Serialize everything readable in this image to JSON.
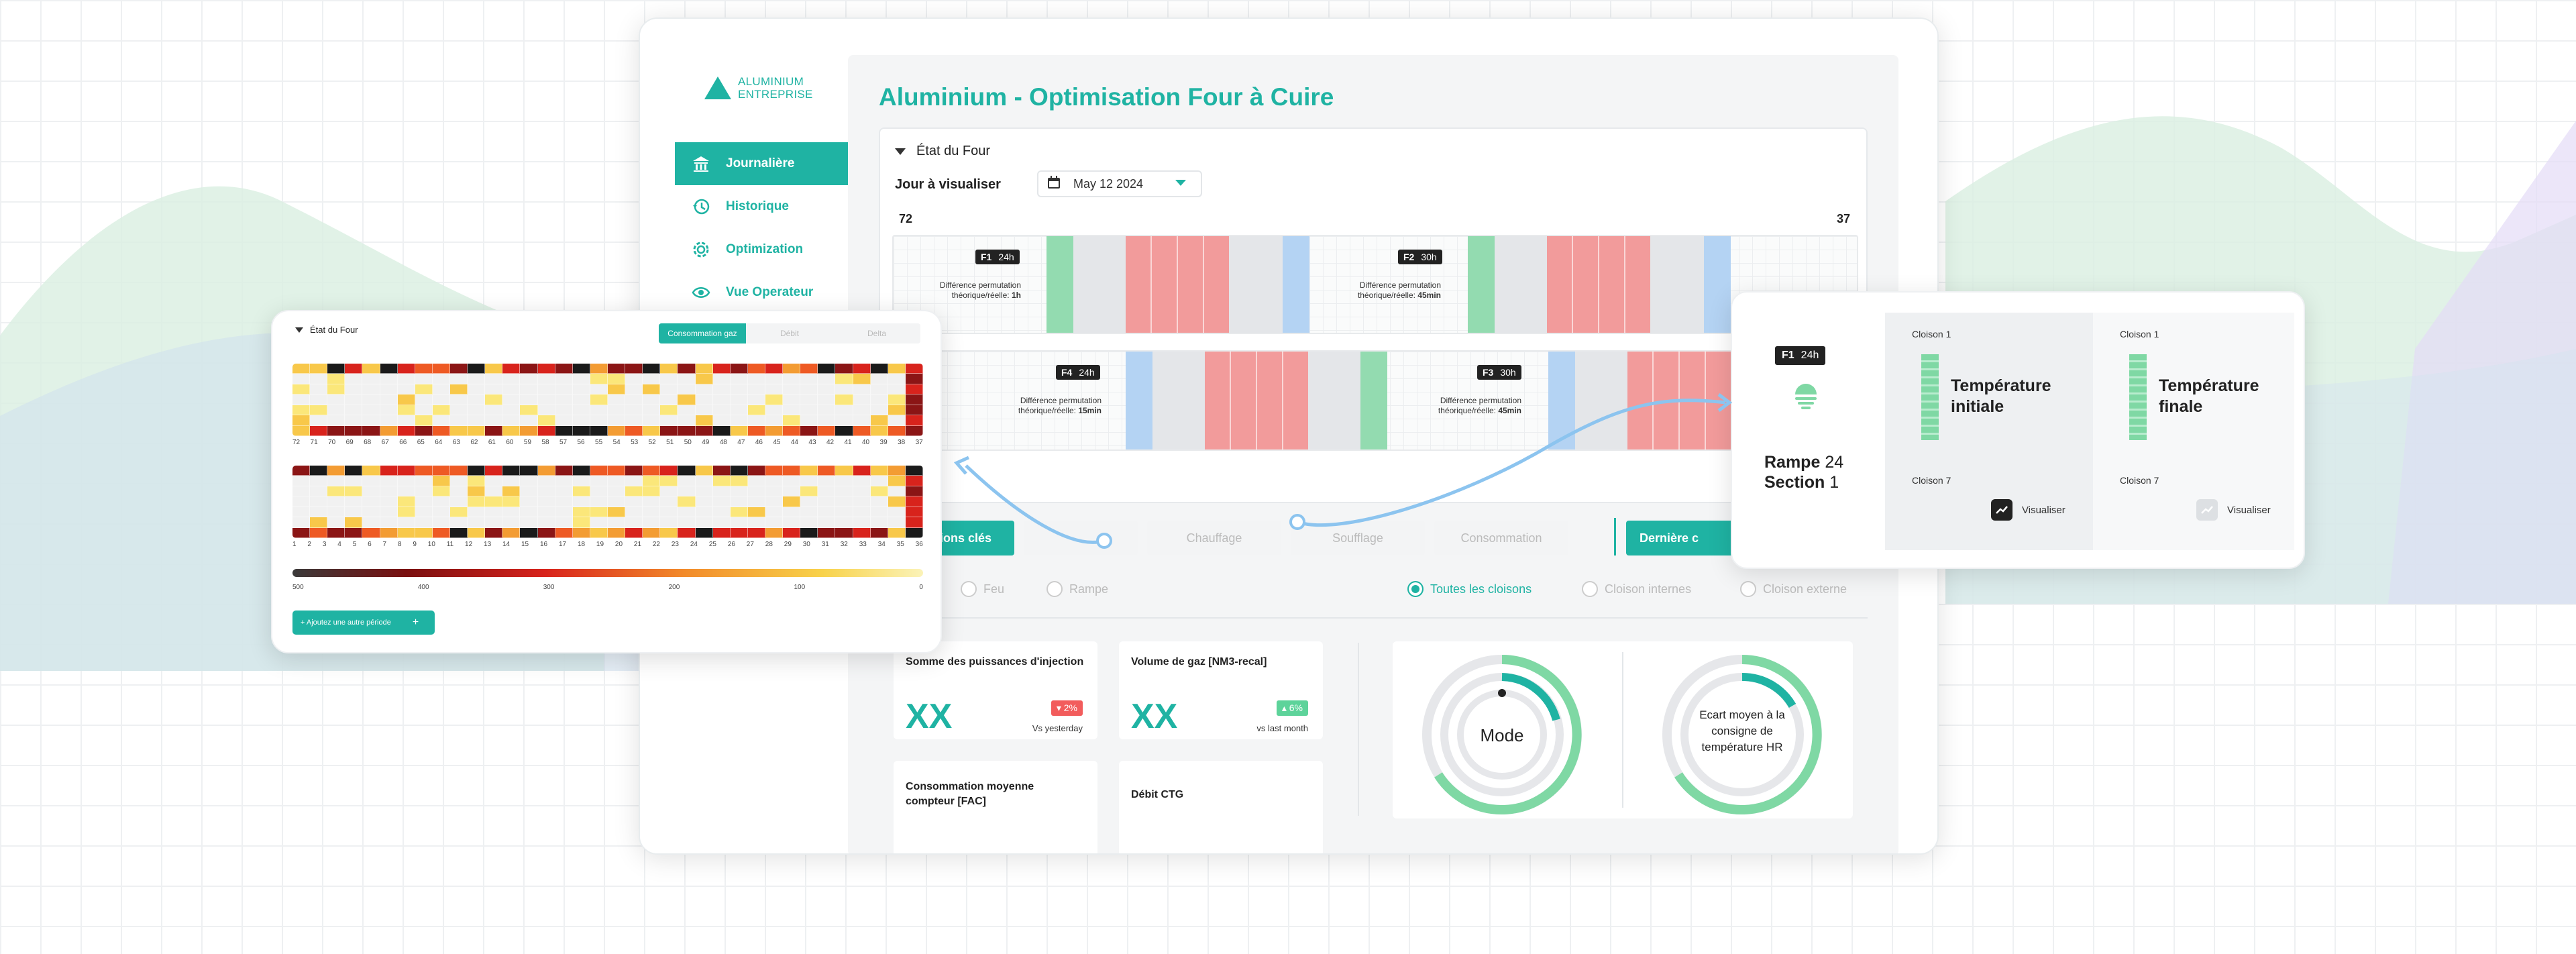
{
  "brand": {
    "line1": "ALUMINIUM",
    "line2": "ENTREPRISE"
  },
  "sidebar": {
    "items": [
      {
        "label": "Journalière",
        "icon": "bank-icon",
        "active": true
      },
      {
        "label": "Historique",
        "icon": "history-icon",
        "active": false
      },
      {
        "label": "Optimization",
        "icon": "gear-icon",
        "active": false
      },
      {
        "label": "Vue Operateur",
        "icon": "eye-icon",
        "active": false
      }
    ]
  },
  "page": {
    "title": "Aluminium - Optimisation Four à Cuire"
  },
  "four": {
    "section_title": "État du Four",
    "day_label": "Jour à visualiser",
    "date": "May 12 2024",
    "axis_left": "72",
    "axis_right": "37",
    "tags": [
      {
        "name": "F1",
        "hours": "24h"
      },
      {
        "name": "F2",
        "hours": "30h"
      },
      {
        "name": "F4",
        "hours": "24h"
      },
      {
        "name": "F3",
        "hours": "30h"
      }
    ],
    "notes": [
      {
        "line1": "Différence permutation",
        "line2": "théorique/réelle:",
        "value": "1h"
      },
      {
        "line1": "Différence permutation",
        "line2": "théorique/réelle:",
        "value": "45min"
      },
      {
        "line1": "Différence permutation",
        "line2": "théorique/réelle:",
        "value": "15min"
      },
      {
        "line1": "Différence permutation",
        "line2": "théorique/réelle:",
        "value": "45min"
      }
    ]
  },
  "tabs": [
    "ations clés",
    "",
    "Chauffage",
    "Soufflage",
    "Consommation"
  ],
  "last_btn": "Dernière c",
  "filters": {
    "left": [
      "Feu",
      "Rampe"
    ],
    "right": [
      "Toutes les cloisons",
      "Cloison internes",
      "Cloison externe"
    ]
  },
  "kpis": [
    {
      "label": "Somme des puissances d'injection",
      "value": "XX",
      "badge": "2%",
      "badge_color": "#f25c5c",
      "sub": "Vs yesterday"
    },
    {
      "label": "Volume de gaz [NM3-recal]",
      "value": "XX",
      "badge": "6%",
      "badge_color": "#5dd39a",
      "sub": "vs last month"
    },
    {
      "label": "Consommation moyenne compteur [FAC]",
      "value": "",
      "badge": "",
      "sub": ""
    },
    {
      "label": "Débit CTG",
      "value": "",
      "badge": "",
      "sub": ""
    }
  ],
  "gauges": [
    {
      "label": "Mode",
      "level": 0.12
    },
    {
      "label": "Ecart moyen à la consigne de température HR",
      "level": 0.1
    }
  ],
  "left_win": {
    "title": "État du Four",
    "seg": [
      "Consommation gaz",
      "Débit",
      "Delta"
    ],
    "top_axis": [
      "72",
      "71",
      "70",
      "69",
      "68",
      "67",
      "66",
      "65",
      "64",
      "63",
      "62",
      "61",
      "60",
      "59",
      "58",
      "57",
      "56",
      "55",
      "54",
      "53",
      "52",
      "51",
      "50",
      "49",
      "48",
      "47",
      "46",
      "45",
      "44",
      "43",
      "42",
      "41",
      "40",
      "39",
      "38",
      "37"
    ],
    "bottom_axis": [
      "1",
      "2",
      "3",
      "4",
      "5",
      "6",
      "7",
      "8",
      "9",
      "10",
      "11",
      "12",
      "13",
      "14",
      "15",
      "16",
      "17",
      "18",
      "19",
      "20",
      "21",
      "22",
      "23",
      "24",
      "25",
      "26",
      "27",
      "28",
      "29",
      "30",
      "31",
      "32",
      "33",
      "34",
      "35",
      "36"
    ],
    "scale": [
      "500",
      "400",
      "300",
      "200",
      "100",
      "0"
    ],
    "add_btn": "+ Ajoutez une autre période",
    "add_plus": "+"
  },
  "right_win": {
    "tag": {
      "name": "F1",
      "hours": "24h"
    },
    "rampe": "Rampe",
    "rampe_num": "24",
    "section": "Section",
    "section_num": "1",
    "cols": [
      {
        "top": "Cloison 1",
        "bottom": "Cloison 7",
        "title": "Température initiale",
        "btn": "Visualiser"
      },
      {
        "top": "Cloison 1",
        "bottom": "Cloison 7",
        "title": "Température finale",
        "btn": "Visualiser"
      }
    ]
  },
  "colors": {
    "accent": "#1fb3a3",
    "red": "#f28c8c",
    "green": "#93dbb0",
    "blue": "#b4d3f3"
  }
}
